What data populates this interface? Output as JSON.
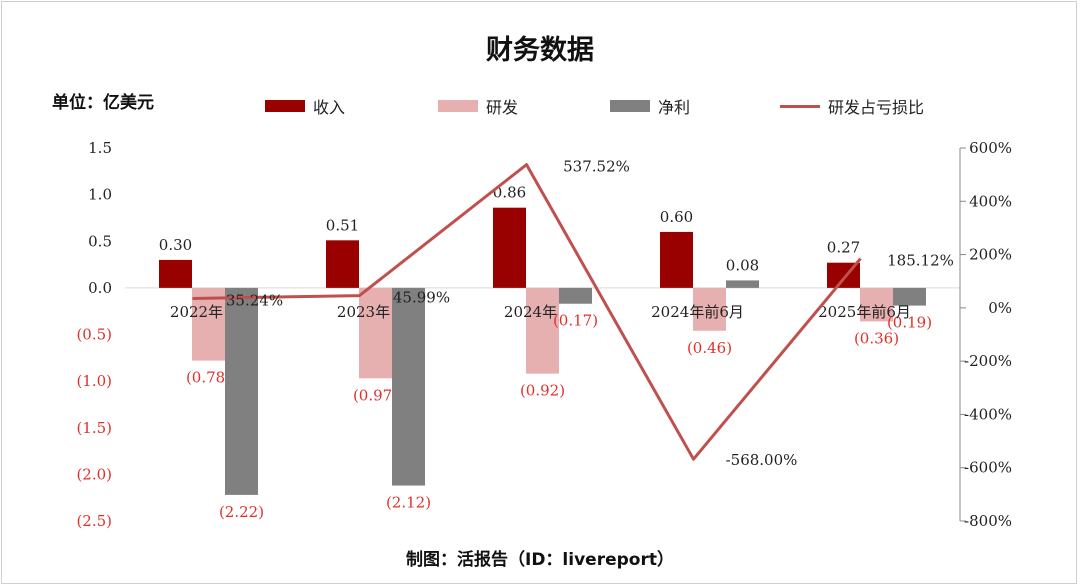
{
  "chart_data": {
    "type": "bar+line",
    "title": "财务数据",
    "unit_label": "单位：亿美元",
    "credit": "制图：活报告（ID：livereport）",
    "categories": [
      "2022年",
      "2023年",
      "2024年",
      "2024年前6月",
      "2025年前6月"
    ],
    "series": [
      {
        "name": "收入",
        "type": "bar",
        "axis": "left",
        "color": "#990000",
        "values": [
          0.3,
          0.51,
          0.86,
          0.6,
          0.27
        ],
        "labels": [
          "0.30",
          "0.51",
          "0.86",
          "0.60",
          "0.27"
        ]
      },
      {
        "name": "研发",
        "type": "bar",
        "axis": "left",
        "color": "#e6b0b0",
        "values": [
          -0.78,
          -0.97,
          -0.92,
          -0.46,
          -0.36
        ],
        "labels": [
          "(0.78)",
          "(0.97)",
          "(0.92)",
          "(0.46)",
          "(0.36)"
        ]
      },
      {
        "name": "净利",
        "type": "bar",
        "axis": "left",
        "color": "#808080",
        "values": [
          -2.22,
          -2.12,
          -0.17,
          0.08,
          -0.19
        ],
        "labels": [
          "(2.22)",
          "(2.12)",
          "(0.17)",
          "0.08",
          "(0.19)"
        ]
      },
      {
        "name": "研发占亏损比",
        "type": "line",
        "axis": "right",
        "color": "#c0504d",
        "values": [
          35.24,
          45.99,
          537.52,
          -568.0,
          185.12
        ],
        "labels": [
          "35.24%",
          "45.99%",
          "537.52%",
          "-568.00%",
          "185.12%"
        ]
      }
    ],
    "y_left": {
      "min": -2.5,
      "max": 1.5,
      "step": 0.5,
      "ticks": [
        "1.5",
        "1.0",
        "0.5",
        "0.0",
        "(0.5)",
        "(1.0)",
        "(1.5)",
        "(2.0)",
        "(2.5)"
      ]
    },
    "y_right": {
      "min": -800,
      "max": 600,
      "step": 200,
      "ticks": [
        "600%",
        "400%",
        "200%",
        "0%",
        "-200%",
        "-400%",
        "-600%",
        "-800%"
      ]
    },
    "legend_position": "top",
    "grid": false
  },
  "colors": {
    "negative_label": "#e0302a",
    "axis": "#888888",
    "text": "#222222"
  }
}
